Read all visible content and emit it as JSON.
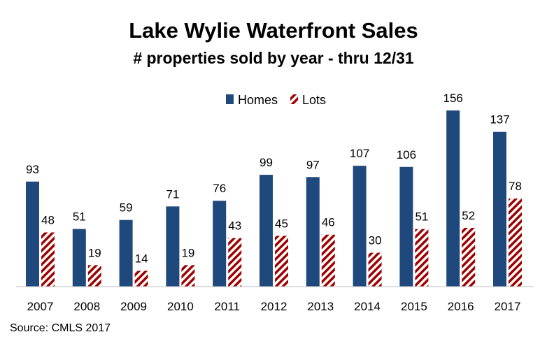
{
  "chart_data": {
    "type": "bar",
    "title": "Lake Wylie Waterfront Sales",
    "subtitle": "# properties sold by year - thru 12/31",
    "categories": [
      "2007",
      "2008",
      "2009",
      "2010",
      "2011",
      "2012",
      "2013",
      "2014",
      "2015",
      "2016",
      "2017"
    ],
    "series": [
      {
        "name": "Homes",
        "values": [
          93,
          51,
          59,
          71,
          76,
          99,
          97,
          107,
          106,
          156,
          137
        ],
        "color": "#1F497D",
        "pattern": "solid"
      },
      {
        "name": "Lots",
        "values": [
          48,
          19,
          14,
          19,
          43,
          45,
          46,
          30,
          51,
          52,
          78
        ],
        "color": "#A00000",
        "pattern": "diagonal-hatch"
      }
    ],
    "ylim": [
      0,
      156
    ],
    "grid": false,
    "legend_position": "top",
    "xlabel": "",
    "ylabel": ""
  },
  "source_note": "Source: CMLS  2017"
}
